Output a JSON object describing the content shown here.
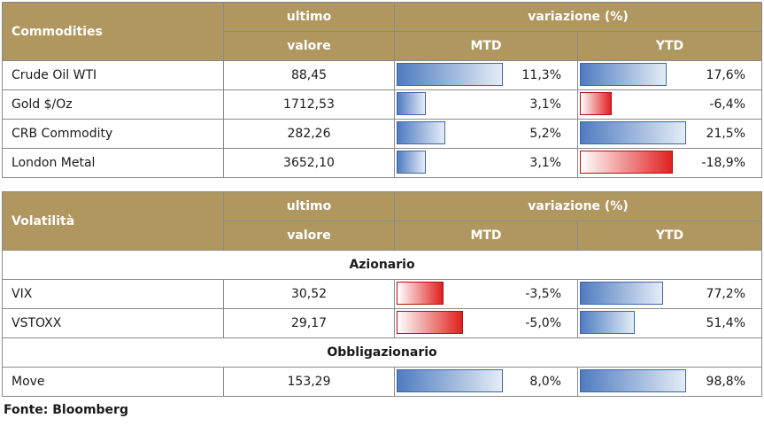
{
  "commodities": {
    "header": {
      "name": "Commodities",
      "last_top": "ultimo",
      "last_bottom": "valore",
      "change": "variazione (%)",
      "mtd": "MTD",
      "ytd": "YTD"
    },
    "rows": [
      {
        "name": "Crude Oil WTI",
        "value": "88,45",
        "mtd": "11,3%",
        "mtd_num": 11.3,
        "ytd": "17,6%",
        "ytd_num": 17.6
      },
      {
        "name": "Gold $/Oz",
        "value": "1712,53",
        "mtd": "3,1%",
        "mtd_num": 3.1,
        "ytd": "-6,4%",
        "ytd_num": -6.4
      },
      {
        "name": "CRB Commodity",
        "value": "282,26",
        "mtd": "5,2%",
        "mtd_num": 5.2,
        "ytd": "21,5%",
        "ytd_num": 21.5
      },
      {
        "name": "London Metal",
        "value": "3652,10",
        "mtd": "3,1%",
        "mtd_num": 3.1,
        "ytd": "-18,9%",
        "ytd_num": -18.9
      }
    ]
  },
  "volatility": {
    "header": {
      "name": "Volatilità",
      "last_top": "ultimo",
      "last_bottom": "valore",
      "change": "variazione (%)",
      "mtd": "MTD",
      "ytd": "YTD"
    },
    "sections": [
      {
        "title": "Azionario",
        "rows": [
          {
            "name": "VIX",
            "value": "30,52",
            "mtd": "-3,5%",
            "mtd_num": -3.5,
            "ytd": "77,2%",
            "ytd_num": 77.2
          },
          {
            "name": "VSTOXX",
            "value": "29,17",
            "mtd": "-5,0%",
            "mtd_num": -5.0,
            "ytd": "51,4%",
            "ytd_num": 51.4
          }
        ]
      },
      {
        "title": "Obbligazionario",
        "rows": [
          {
            "name": "Move",
            "value": "153,29",
            "mtd": "8,0%",
            "mtd_num": 8.0,
            "ytd": "98,8%",
            "ytd_num": 98.8
          }
        ]
      }
    ]
  },
  "source": "Fonte: Bloomberg",
  "colors": {
    "header_bg": "#b09760",
    "positive_bar": "#4f7cc0",
    "negative_bar": "#e02020"
  }
}
